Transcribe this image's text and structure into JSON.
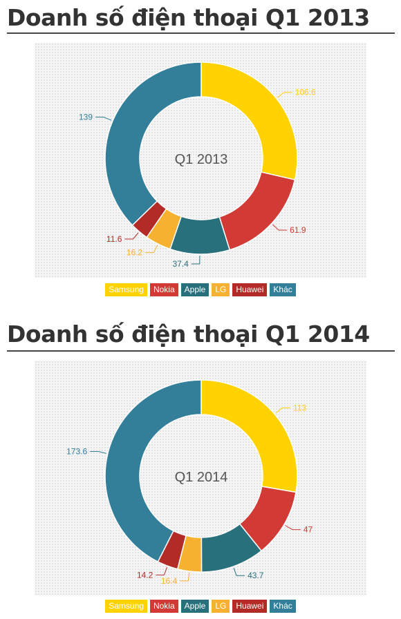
{
  "charts": [
    {
      "heading": "Doanh số điện thoại Q1 2013"
    },
    {
      "heading": "Doanh số điện thoại Q1 2014"
    }
  ],
  "chart_data": [
    {
      "type": "pie",
      "title": "Doanh số điện thoại Q1 2013",
      "center_label": "Q1 2013",
      "categories": [
        "Samsung",
        "Nokia",
        "Apple",
        "LG",
        "Huawei",
        "Khác"
      ],
      "values": [
        106.6,
        61.9,
        37.4,
        16.2,
        11.6,
        139
      ],
      "value_labels": [
        "106.6",
        "61.9",
        "37.4",
        "16.2",
        "11.6",
        "139"
      ],
      "colors": [
        "#ffd200",
        "#d13a35",
        "#29707d",
        "#f6b130",
        "#b32b26",
        "#337e99"
      ],
      "legend_position": "bottom-center"
    },
    {
      "type": "pie",
      "title": "Doanh số điện thoại Q1 2014",
      "center_label": "Q1 2014",
      "categories": [
        "Samsung",
        "Nokia",
        "Apple",
        "LG",
        "Huawei",
        "Khác"
      ],
      "values": [
        113,
        47,
        43.7,
        16.4,
        14.2,
        173.6
      ],
      "value_labels": [
        "113",
        "47",
        "43.7",
        "16.4",
        "14.2",
        "173.6"
      ],
      "colors": [
        "#ffd200",
        "#d13a35",
        "#29707d",
        "#f6b130",
        "#b32b26",
        "#337e99"
      ],
      "legend_position": "bottom-center"
    }
  ]
}
